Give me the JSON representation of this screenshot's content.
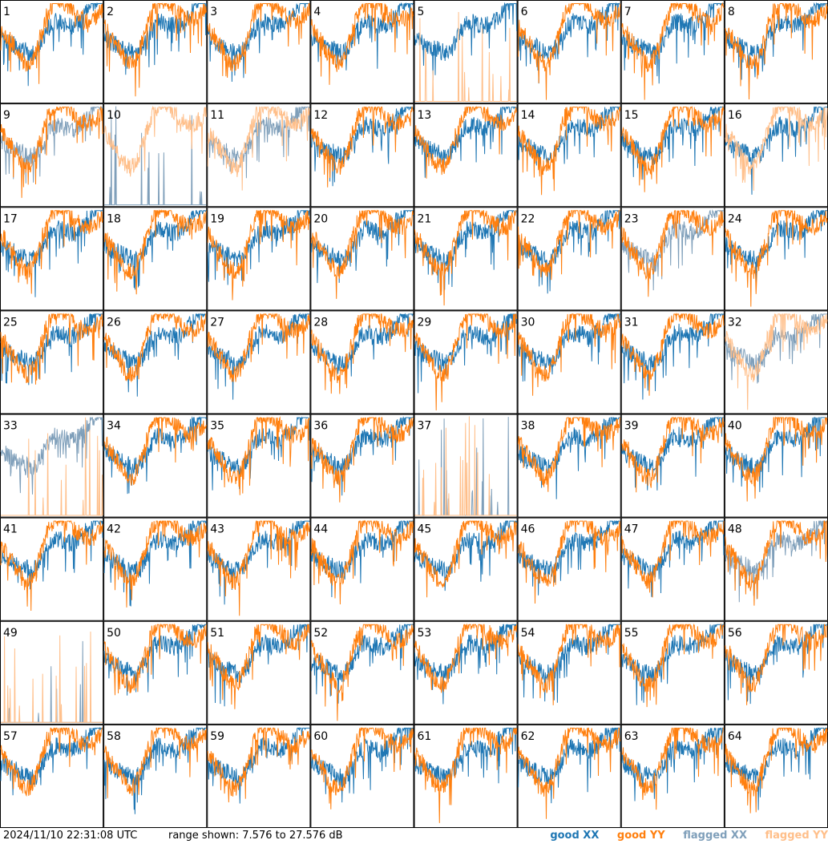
{
  "timestamp": "2024/11/10 22:31:08 UTC",
  "range_text": "range shown: 7.576 to 27.576 dB",
  "legend": {
    "good_xx": {
      "label": "good XX",
      "color": "#1f77b4"
    },
    "good_yy": {
      "label": "good YY",
      "color": "#ff7f0e"
    },
    "flagged_xx": {
      "label": "flagged XX",
      "color": "#7f9fba"
    },
    "flagged_yy": {
      "label": "flagged YY",
      "color": "#ffbf8a"
    }
  },
  "chart_data": {
    "type": "line",
    "grid": {
      "rows": 8,
      "cols": 8
    },
    "ylim_db": [
      7.576,
      27.576
    ],
    "panels": [
      {
        "id": "1",
        "xx": "good",
        "yy": "good"
      },
      {
        "id": "2",
        "xx": "good",
        "yy": "good"
      },
      {
        "id": "3",
        "xx": "good",
        "yy": "good"
      },
      {
        "id": "4",
        "xx": "good",
        "yy": "good"
      },
      {
        "id": "5",
        "xx": "good",
        "yy": "flagged"
      },
      {
        "id": "6",
        "xx": "good",
        "yy": "good"
      },
      {
        "id": "7",
        "xx": "good",
        "yy": "good"
      },
      {
        "id": "8",
        "xx": "good",
        "yy": "good"
      },
      {
        "id": "9",
        "xx": "flagged",
        "yy": "good"
      },
      {
        "id": "10",
        "xx": "flagged",
        "yy": "flagged"
      },
      {
        "id": "11",
        "xx": "flagged",
        "yy": "flagged"
      },
      {
        "id": "12",
        "xx": "good",
        "yy": "good"
      },
      {
        "id": "13",
        "xx": "good",
        "yy": "good"
      },
      {
        "id": "14",
        "xx": "good",
        "yy": "good"
      },
      {
        "id": "15",
        "xx": "good",
        "yy": "good"
      },
      {
        "id": "16",
        "xx": "good",
        "yy": "flagged"
      },
      {
        "id": "17",
        "xx": "good",
        "yy": "good"
      },
      {
        "id": "18",
        "xx": "good",
        "yy": "good"
      },
      {
        "id": "19",
        "xx": "good",
        "yy": "good"
      },
      {
        "id": "20",
        "xx": "good",
        "yy": "good"
      },
      {
        "id": "21",
        "xx": "good",
        "yy": "good"
      },
      {
        "id": "22",
        "xx": "good",
        "yy": "good"
      },
      {
        "id": "23",
        "xx": "flagged",
        "yy": "good"
      },
      {
        "id": "24",
        "xx": "good",
        "yy": "good"
      },
      {
        "id": "25",
        "xx": "good",
        "yy": "good"
      },
      {
        "id": "26",
        "xx": "good",
        "yy": "good"
      },
      {
        "id": "27",
        "xx": "good",
        "yy": "good"
      },
      {
        "id": "28",
        "xx": "good",
        "yy": "good"
      },
      {
        "id": "29",
        "xx": "good",
        "yy": "good"
      },
      {
        "id": "30",
        "xx": "good",
        "yy": "good"
      },
      {
        "id": "31",
        "xx": "good",
        "yy": "good"
      },
      {
        "id": "32",
        "xx": "flagged",
        "yy": "flagged"
      },
      {
        "id": "33",
        "xx": "flagged",
        "yy": "flagged"
      },
      {
        "id": "34",
        "xx": "good",
        "yy": "good"
      },
      {
        "id": "35",
        "xx": "good",
        "yy": "good"
      },
      {
        "id": "36",
        "xx": "good",
        "yy": "good"
      },
      {
        "id": "37",
        "xx": "flagged",
        "yy": "flagged"
      },
      {
        "id": "38",
        "xx": "good",
        "yy": "good"
      },
      {
        "id": "39",
        "xx": "good",
        "yy": "good"
      },
      {
        "id": "40",
        "xx": "good",
        "yy": "good"
      },
      {
        "id": "41",
        "xx": "good",
        "yy": "good"
      },
      {
        "id": "42",
        "xx": "good",
        "yy": "good"
      },
      {
        "id": "43",
        "xx": "good",
        "yy": "good"
      },
      {
        "id": "44",
        "xx": "good",
        "yy": "good"
      },
      {
        "id": "45",
        "xx": "good",
        "yy": "good"
      },
      {
        "id": "46",
        "xx": "good",
        "yy": "good"
      },
      {
        "id": "47",
        "xx": "good",
        "yy": "good"
      },
      {
        "id": "48",
        "xx": "flagged",
        "yy": "good"
      },
      {
        "id": "49",
        "xx": "flagged",
        "yy": "flagged"
      },
      {
        "id": "50",
        "xx": "good",
        "yy": "good"
      },
      {
        "id": "51",
        "xx": "good",
        "yy": "good"
      },
      {
        "id": "52",
        "xx": "good",
        "yy": "good"
      },
      {
        "id": "53",
        "xx": "good",
        "yy": "good"
      },
      {
        "id": "54",
        "xx": "good",
        "yy": "good"
      },
      {
        "id": "55",
        "xx": "good",
        "yy": "good"
      },
      {
        "id": "56",
        "xx": "good",
        "yy": "good"
      },
      {
        "id": "57",
        "xx": "good",
        "yy": "good"
      },
      {
        "id": "58",
        "xx": "good",
        "yy": "good"
      },
      {
        "id": "59",
        "xx": "good",
        "yy": "good"
      },
      {
        "id": "60",
        "xx": "good",
        "yy": "good"
      },
      {
        "id": "61",
        "xx": "good",
        "yy": "good"
      },
      {
        "id": "62",
        "xx": "good",
        "yy": "good"
      },
      {
        "id": "63",
        "xx": "good",
        "yy": "good"
      },
      {
        "id": "64",
        "xx": "good",
        "yy": "good"
      }
    ]
  }
}
